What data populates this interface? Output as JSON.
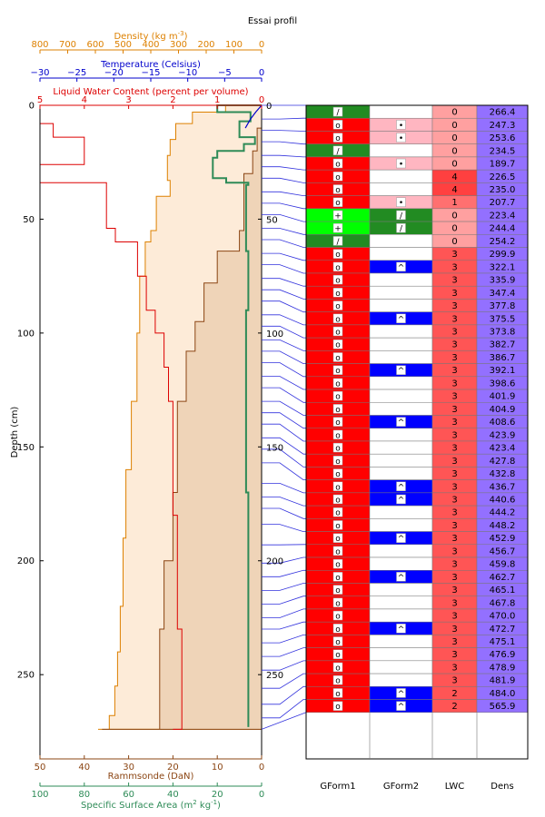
{
  "title": "Essai profil",
  "chart_data": {
    "type": "snow_profile",
    "title": "Essai profil",
    "ylabel": "Depth (cm)",
    "ylim": [
      0,
      287
    ],
    "yticks": [
      0,
      50,
      100,
      150,
      200,
      250
    ],
    "axes": {
      "density": {
        "label": "Density (kg m$^{-3}$)",
        "display": "Density (kg m",
        "sup": "-3",
        "tail": ")",
        "range": [
          800,
          0
        ],
        "ticks": [
          800,
          700,
          600,
          500,
          400,
          300,
          200,
          100,
          0
        ],
        "color": "#dd8000"
      },
      "temperature": {
        "label": "Temperature (Celsius)",
        "range": [
          -30,
          0
        ],
        "ticks": [
          -30,
          -25,
          -20,
          -15,
          -10,
          -5,
          0
        ],
        "color": "#0000cc"
      },
      "lwc": {
        "label": "Liquid Water Content (percent per volume)",
        "range": [
          5,
          0
        ],
        "ticks": [
          5,
          4,
          3,
          2,
          1,
          0
        ],
        "color": "#dd0000"
      },
      "ram": {
        "label": "Rammsonde (DaN)",
        "range": [
          50,
          0
        ],
        "ticks": [
          50,
          40,
          30,
          20,
          10,
          0
        ],
        "color": "#8b4513"
      },
      "ssa": {
        "label": "Specific Surface Area (m$^2$ kg$^{-1}$)",
        "display": "Specific Surface Area (m",
        "sup": "2",
        "mid": "  kg",
        "sup2": "-1",
        "tail": ")",
        "range": [
          100,
          0
        ],
        "ticks": [
          100,
          80,
          60,
          40,
          20,
          0
        ],
        "color": "#2e8b57"
      }
    },
    "temperature_profile": [
      [
        0,
        0
      ],
      [
        3,
        -0.8
      ],
      [
        6,
        -1.5
      ],
      [
        10,
        -2.2
      ]
    ],
    "density_profile": [
      [
        0,
        130
      ],
      [
        3,
        250
      ],
      [
        8,
        310
      ],
      [
        15,
        330
      ],
      [
        22,
        340
      ],
      [
        33,
        330
      ],
      [
        40,
        380
      ],
      [
        55,
        400
      ],
      [
        60,
        420
      ],
      [
        75,
        440
      ],
      [
        100,
        450
      ],
      [
        130,
        470
      ],
      [
        160,
        490
      ],
      [
        190,
        500
      ],
      [
        220,
        510
      ],
      [
        240,
        520
      ],
      [
        255,
        530
      ],
      [
        268,
        550
      ],
      [
        274,
        590
      ]
    ],
    "ram_profile": [
      [
        0,
        0
      ],
      [
        10,
        1
      ],
      [
        20,
        2
      ],
      [
        30,
        4
      ],
      [
        55,
        5
      ],
      [
        64,
        10
      ],
      [
        70,
        10
      ],
      [
        78,
        13
      ],
      [
        95,
        15
      ],
      [
        108,
        17
      ],
      [
        130,
        19
      ],
      [
        170,
        20
      ],
      [
        200,
        22
      ],
      [
        230,
        23
      ],
      [
        255,
        23
      ],
      [
        268,
        23
      ],
      [
        274,
        36
      ]
    ],
    "ssa_profile": [
      [
        0,
        20
      ],
      [
        3,
        5
      ],
      [
        7,
        10
      ],
      [
        14,
        3
      ],
      [
        17,
        8
      ],
      [
        20,
        20
      ],
      [
        23,
        22
      ],
      [
        32,
        16
      ],
      [
        34,
        6
      ],
      [
        35,
        7
      ],
      [
        55,
        7
      ],
      [
        64,
        6
      ],
      [
        70,
        6
      ],
      [
        90,
        7
      ],
      [
        130,
        7
      ],
      [
        170,
        6
      ],
      [
        210,
        6
      ],
      [
        250,
        6
      ],
      [
        273,
        6
      ]
    ],
    "lwc_profile": [
      [
        0,
        5
      ],
      [
        8,
        4.7
      ],
      [
        14,
        4
      ],
      [
        26,
        5
      ],
      [
        34,
        3.5
      ],
      [
        54,
        3.3
      ],
      [
        60,
        2.8
      ],
      [
        75,
        2.6
      ],
      [
        90,
        2.4
      ],
      [
        100,
        2.2
      ],
      [
        115,
        2.1
      ],
      [
        130,
        2.0
      ],
      [
        160,
        2.0
      ],
      [
        180,
        1.9
      ],
      [
        200,
        1.9
      ],
      [
        230,
        1.8
      ],
      [
        268,
        1.8
      ],
      [
        274,
        2
      ]
    ],
    "depth_labels": [
      "0",
      "50",
      "100",
      "150",
      "200",
      "250"
    ],
    "columns": [
      "GForm1",
      "GForm2",
      "LWC",
      "Dens"
    ],
    "layers": [
      {
        "top": 0,
        "bottom": 6,
        "g1": "/",
        "g1c": "#228b22",
        "g2": "",
        "g2c": "#ffffff",
        "lwc": "0",
        "dens": "266.4"
      },
      {
        "top": 6,
        "bottom": 11,
        "g1": "o",
        "g1c": "#ff0000",
        "g2": "•",
        "g2c": "#ffb6c1",
        "lwc": "0",
        "dens": "247.3"
      },
      {
        "top": 11,
        "bottom": 16,
        "g1": "o",
        "g1c": "#ff0000",
        "g2": "•",
        "g2c": "#ffb6c1",
        "lwc": "0",
        "dens": "253.6"
      },
      {
        "top": 16,
        "bottom": 22,
        "g1": "/",
        "g1c": "#228b22",
        "g2": "",
        "g2c": "#ffffff",
        "lwc": "0",
        "dens": "234.5"
      },
      {
        "top": 22,
        "bottom": 27,
        "g1": "o",
        "g1c": "#ff0000",
        "g2": "•",
        "g2c": "#ffb6c1",
        "lwc": "0",
        "dens": "189.7"
      },
      {
        "top": 27,
        "bottom": 32,
        "g1": "o",
        "g1c": "#ff0000",
        "g2": "",
        "g2c": "#ffffff",
        "lwc": "4",
        "dens": "226.5"
      },
      {
        "top": 32,
        "bottom": 38,
        "g1": "o",
        "g1c": "#ff0000",
        "g2": "",
        "g2c": "#ffffff",
        "lwc": "4",
        "dens": "235.0"
      },
      {
        "top": 38,
        "bottom": 43,
        "g1": "o",
        "g1c": "#ff0000",
        "g2": "•",
        "g2c": "#ffb6c1",
        "lwc": "1",
        "dens": "207.7"
      },
      {
        "top": 43,
        "bottom": 48,
        "g1": "+",
        "g1c": "#00ff00",
        "g2": "/",
        "g2c": "#228b22",
        "lwc": "0",
        "dens": "223.4"
      },
      {
        "top": 48,
        "bottom": 54,
        "g1": "+",
        "g1c": "#00ff00",
        "g2": "/",
        "g2c": "#228b22",
        "lwc": "0",
        "dens": "244.4"
      },
      {
        "top": 54,
        "bottom": 59,
        "g1": "/",
        "g1c": "#228b22",
        "g2": "",
        "g2c": "#ffffff",
        "lwc": "0",
        "dens": "254.2"
      },
      {
        "top": 59,
        "bottom": 65,
        "g1": "o",
        "g1c": "#ff0000",
        "g2": "",
        "g2c": "#ffffff",
        "lwc": "3",
        "dens": "299.9"
      },
      {
        "top": 65,
        "bottom": 70,
        "g1": "o",
        "g1c": "#ff0000",
        "g2": "^",
        "g2c": "#0000ff",
        "lwc": "3",
        "dens": "322.1"
      },
      {
        "top": 70,
        "bottom": 76,
        "g1": "o",
        "g1c": "#ff0000",
        "g2": "",
        "g2c": "#ffffff",
        "lwc": "3",
        "dens": "335.9"
      },
      {
        "top": 76,
        "bottom": 81,
        "g1": "o",
        "g1c": "#ff0000",
        "g2": "",
        "g2c": "#ffffff",
        "lwc": "3",
        "dens": "347.4"
      },
      {
        "top": 81,
        "bottom": 86,
        "g1": "o",
        "g1c": "#ff0000",
        "g2": "",
        "g2c": "#ffffff",
        "lwc": "3",
        "dens": "377.8"
      },
      {
        "top": 86,
        "bottom": 92,
        "g1": "o",
        "g1c": "#ff0000",
        "g2": "^",
        "g2c": "#0000ff",
        "lwc": "3",
        "dens": "375.5"
      },
      {
        "top": 92,
        "bottom": 97,
        "g1": "o",
        "g1c": "#ff0000",
        "g2": "",
        "g2c": "#ffffff",
        "lwc": "3",
        "dens": "373.8"
      },
      {
        "top": 97,
        "bottom": 103,
        "g1": "o",
        "g1c": "#ff0000",
        "g2": "",
        "g2c": "#ffffff",
        "lwc": "3",
        "dens": "382.7"
      },
      {
        "top": 103,
        "bottom": 108,
        "g1": "o",
        "g1c": "#ff0000",
        "g2": "",
        "g2c": "#ffffff",
        "lwc": "3",
        "dens": "386.7"
      },
      {
        "top": 108,
        "bottom": 113,
        "g1": "o",
        "g1c": "#ff0000",
        "g2": "^",
        "g2c": "#0000ff",
        "lwc": "3",
        "dens": "392.1"
      },
      {
        "top": 113,
        "bottom": 119,
        "g1": "o",
        "g1c": "#ff0000",
        "g2": "",
        "g2c": "#ffffff",
        "lwc": "3",
        "dens": "398.6"
      },
      {
        "top": 119,
        "bottom": 124,
        "g1": "o",
        "g1c": "#ff0000",
        "g2": "",
        "g2c": "#ffffff",
        "lwc": "3",
        "dens": "401.9"
      },
      {
        "top": 124,
        "bottom": 130,
        "g1": "o",
        "g1c": "#ff0000",
        "g2": "",
        "g2c": "#ffffff",
        "lwc": "3",
        "dens": "404.9"
      },
      {
        "top": 130,
        "bottom": 135,
        "g1": "o",
        "g1c": "#ff0000",
        "g2": "^",
        "g2c": "#0000ff",
        "lwc": "3",
        "dens": "408.6"
      },
      {
        "top": 135,
        "bottom": 140,
        "g1": "o",
        "g1c": "#ff0000",
        "g2": "",
        "g2c": "#ffffff",
        "lwc": "3",
        "dens": "423.9"
      },
      {
        "top": 140,
        "bottom": 146,
        "g1": "o",
        "g1c": "#ff0000",
        "g2": "",
        "g2c": "#ffffff",
        "lwc": "3",
        "dens": "423.4"
      },
      {
        "top": 146,
        "bottom": 151,
        "g1": "o",
        "g1c": "#ff0000",
        "g2": "",
        "g2c": "#ffffff",
        "lwc": "3",
        "dens": "427.8"
      },
      {
        "top": 151,
        "bottom": 157,
        "g1": "o",
        "g1c": "#ff0000",
        "g2": "",
        "g2c": "#ffffff",
        "lwc": "3",
        "dens": "432.8"
      },
      {
        "top": 157,
        "bottom": 166,
        "g1": "o",
        "g1c": "#ff0000",
        "g2": "^",
        "g2c": "#0000ff",
        "lwc": "3",
        "dens": "436.7"
      },
      {
        "top": 166,
        "bottom": 172,
        "g1": "o",
        "g1c": "#ff0000",
        "g2": "^",
        "g2c": "#0000ff",
        "lwc": "3",
        "dens": "440.6"
      },
      {
        "top": 172,
        "bottom": 177,
        "g1": "o",
        "g1c": "#ff0000",
        "g2": "",
        "g2c": "#ffffff",
        "lwc": "3",
        "dens": "444.2"
      },
      {
        "top": 177,
        "bottom": 184,
        "g1": "o",
        "g1c": "#ff0000",
        "g2": "",
        "g2c": "#ffffff",
        "lwc": "3",
        "dens": "448.2"
      },
      {
        "top": 184,
        "bottom": 193,
        "g1": "o",
        "g1c": "#ff0000",
        "g2": "^",
        "g2c": "#0000ff",
        "lwc": "3",
        "dens": "452.9"
      },
      {
        "top": 193,
        "bottom": 201,
        "g1": "o",
        "g1c": "#ff0000",
        "g2": "",
        "g2c": "#ffffff",
        "lwc": "3",
        "dens": "456.7"
      },
      {
        "top": 201,
        "bottom": 207,
        "g1": "o",
        "g1c": "#ff0000",
        "g2": "",
        "g2c": "#ffffff",
        "lwc": "3",
        "dens": "459.8"
      },
      {
        "top": 207,
        "bottom": 213,
        "g1": "o",
        "g1c": "#ff0000",
        "g2": "^",
        "g2c": "#0000ff",
        "lwc": "3",
        "dens": "462.7"
      },
      {
        "top": 213,
        "bottom": 219,
        "g1": "o",
        "g1c": "#ff0000",
        "g2": "",
        "g2c": "#ffffff",
        "lwc": "3",
        "dens": "465.1"
      },
      {
        "top": 219,
        "bottom": 225,
        "g1": "o",
        "g1c": "#ff0000",
        "g2": "",
        "g2c": "#ffffff",
        "lwc": "3",
        "dens": "467.8"
      },
      {
        "top": 225,
        "bottom": 230,
        "g1": "o",
        "g1c": "#ff0000",
        "g2": "",
        "g2c": "#ffffff",
        "lwc": "3",
        "dens": "470.0"
      },
      {
        "top": 230,
        "bottom": 236,
        "g1": "o",
        "g1c": "#ff0000",
        "g2": "^",
        "g2c": "#0000ff",
        "lwc": "3",
        "dens": "472.7"
      },
      {
        "top": 236,
        "bottom": 242,
        "g1": "o",
        "g1c": "#ff0000",
        "g2": "",
        "g2c": "#ffffff",
        "lwc": "3",
        "dens": "475.1"
      },
      {
        "top": 242,
        "bottom": 248,
        "g1": "o",
        "g1c": "#ff0000",
        "g2": "",
        "g2c": "#ffffff",
        "lwc": "3",
        "dens": "476.9"
      },
      {
        "top": 248,
        "bottom": 256,
        "g1": "o",
        "g1c": "#ff0000",
        "g2": "",
        "g2c": "#ffffff",
        "lwc": "3",
        "dens": "478.9"
      },
      {
        "top": 256,
        "bottom": 263,
        "g1": "o",
        "g1c": "#ff0000",
        "g2": "",
        "g2c": "#ffffff",
        "lwc": "3",
        "dens": "481.9"
      },
      {
        "top": 263,
        "bottom": 269,
        "g1": "o",
        "g1c": "#ff0000",
        "g2": "^",
        "g2c": "#0000ff",
        "lwc": "2",
        "dens": "484.0"
      },
      {
        "top": 269,
        "bottom": 274,
        "g1": "o",
        "g1c": "#ff0000",
        "g2": "^",
        "g2c": "#0000ff",
        "lwc": "2",
        "dens": "565.9"
      }
    ]
  }
}
